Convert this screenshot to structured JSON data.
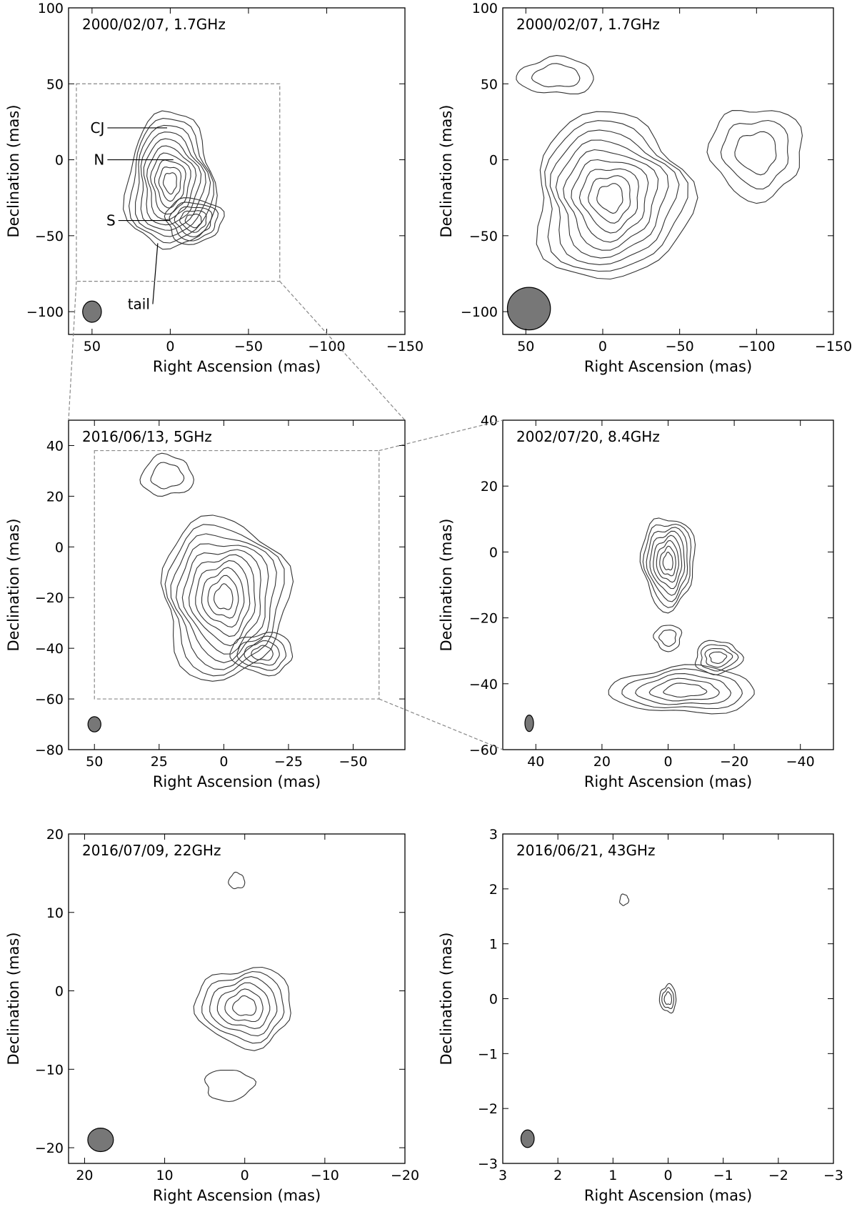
{
  "chart_data": [
    {
      "type": "contour",
      "title": "2000/02/07, 1.7GHz",
      "xlabel": "Right Ascension (mas)",
      "ylabel": "Declination (mas)",
      "xlim": [
        65,
        -150
      ],
      "ylim": [
        -115,
        100
      ],
      "xticks": [
        50,
        0,
        -50,
        -100,
        -150
      ],
      "xticklabels": [
        "50",
        "0",
        "−50",
        "−100",
        "−150"
      ],
      "yticks": [
        100,
        50,
        0,
        -50,
        -100
      ],
      "yticklabels": [
        "100",
        "50",
        "0",
        "−50",
        "−100"
      ],
      "beam": {
        "x": 50,
        "y": -100,
        "major": 7,
        "minor": 6,
        "pa": 0
      },
      "sources": [
        {
          "x": 0,
          "y": -15,
          "sx": 28,
          "sy": 45,
          "levels": 10
        },
        {
          "x": -15,
          "y": -40,
          "sx": 18,
          "sy": 15,
          "levels": 5
        }
      ],
      "annotations": [
        {
          "text": "CJ",
          "x": 42,
          "y": 21,
          "tx": 2,
          "ty": 21
        },
        {
          "text": "N",
          "x": 42,
          "y": 0,
          "tx": -2,
          "ty": 0
        },
        {
          "text": "S",
          "x": 35,
          "y": -40,
          "tx": 0,
          "ty": -40
        },
        {
          "text": "tail",
          "x": 13,
          "y": -95,
          "tx": 8,
          "ty": -55
        }
      ]
    },
    {
      "type": "contour",
      "title": "2000/02/07, 1.7GHz",
      "xlabel": "Right Ascension (mas)",
      "ylabel": "Declination (mas)",
      "xlim": [
        65,
        -150
      ],
      "ylim": [
        -115,
        100
      ],
      "xticks": [
        50,
        0,
        -50,
        -100,
        -150
      ],
      "xticklabels": [
        "50",
        "0",
        "−50",
        "−100",
        "−150"
      ],
      "yticks": [
        100,
        50,
        0,
        -50,
        -100
      ],
      "yticklabels": [
        "100",
        "50",
        "0",
        "−50",
        "−100"
      ],
      "beam": {
        "x": 48,
        "y": -98,
        "major": 14,
        "minor": 14,
        "pa": 0
      },
      "sources": [
        {
          "x": -5,
          "y": -25,
          "sx": 50,
          "sy": 55,
          "levels": 9
        },
        {
          "x": -100,
          "y": 5,
          "sx": 30,
          "sy": 30,
          "levels": 3
        },
        {
          "x": 30,
          "y": 55,
          "sx": 25,
          "sy": 12,
          "levels": 2
        }
      ]
    },
    {
      "type": "contour",
      "title": "2016/06/13, 5GHz",
      "xlabel": "Right Ascension (mas)",
      "ylabel": "Declination (mas)",
      "xlim": [
        60,
        -70
      ],
      "ylim": [
        -80,
        50
      ],
      "xticks": [
        50,
        25,
        0,
        -25,
        -50
      ],
      "xticklabels": [
        "50",
        "25",
        "0",
        "−25",
        "−50"
      ],
      "yticks": [
        40,
        20,
        0,
        -20,
        -40,
        -60,
        -80
      ],
      "yticklabels": [
        "40",
        "20",
        "0",
        "−20",
        "−40",
        "−60",
        "−80"
      ],
      "beam": {
        "x": 50,
        "y": -70,
        "major": 3,
        "minor": 2.5,
        "pa": 0
      },
      "sources": [
        {
          "x": 0,
          "y": -20,
          "sx": 24,
          "sy": 32,
          "levels": 10
        },
        {
          "x": -15,
          "y": -42,
          "sx": 12,
          "sy": 8,
          "levels": 4
        },
        {
          "x": 22,
          "y": 28,
          "sx": 10,
          "sy": 8,
          "levels": 2
        }
      ]
    },
    {
      "type": "contour",
      "title": "2002/07/20, 8.4GHz",
      "xlabel": "Right Ascension (mas)",
      "ylabel": "Declination (mas)",
      "xlim": [
        50,
        -50
      ],
      "ylim": [
        -60,
        40
      ],
      "xticks": [
        40,
        20,
        0,
        -20,
        -40
      ],
      "xticklabels": [
        "40",
        "20",
        "0",
        "−20",
        "−40"
      ],
      "yticks": [
        40,
        20,
        0,
        -20,
        -40,
        -60
      ],
      "yticklabels": [
        "40",
        "20",
        "0",
        "−20",
        "−40",
        "−60"
      ],
      "beam": {
        "x": 42,
        "y": -52,
        "major": 2.5,
        "minor": 1.3,
        "pa": 0
      },
      "sources": [
        {
          "x": 0,
          "y": -3,
          "sx": 8,
          "sy": 14,
          "levels": 8
        },
        {
          "x": -5,
          "y": -42,
          "sx": 22,
          "sy": 7,
          "levels": 5
        },
        {
          "x": -15,
          "y": -32,
          "sx": 7,
          "sy": 5,
          "levels": 4
        },
        {
          "x": 0,
          "y": -26,
          "sx": 4,
          "sy": 4,
          "levels": 2
        }
      ]
    },
    {
      "type": "contour",
      "title": "2016/07/09, 22GHz",
      "xlabel": "Right Ascension (mas)",
      "ylabel": "Declination (mas)",
      "xlim": [
        22,
        -20
      ],
      "ylim": [
        -22,
        20
      ],
      "xticks": [
        20,
        10,
        0,
        -10,
        -20
      ],
      "xticklabels": [
        "20",
        "10",
        "0",
        "−10",
        "−20"
      ],
      "yticks": [
        20,
        10,
        0,
        -10,
        -20
      ],
      "yticklabels": [
        "20",
        "10",
        "0",
        "−10",
        "−20"
      ],
      "beam": {
        "x": 18,
        "y": -19,
        "major": 1.5,
        "minor": 1.6,
        "pa": 0
      },
      "sources": [
        {
          "x": 0,
          "y": -2,
          "sx": 6,
          "sy": 5,
          "levels": 6
        },
        {
          "x": 1,
          "y": 14,
          "sx": 1,
          "sy": 1,
          "levels": 1
        },
        {
          "x": 2,
          "y": -12,
          "sx": 3,
          "sy": 2,
          "levels": 1
        }
      ]
    },
    {
      "type": "contour",
      "title": "2016/06/21, 43GHz",
      "xlabel": "Right Ascension (mas)",
      "ylabel": "Declination (mas)",
      "xlim": [
        3,
        -3
      ],
      "ylim": [
        -3,
        3
      ],
      "xticks": [
        3,
        2,
        1,
        0,
        -1,
        -2,
        -3
      ],
      "xticklabels": [
        "3",
        "2",
        "1",
        "0",
        "−1",
        "−2",
        "−3"
      ],
      "yticks": [
        3,
        2,
        1,
        0,
        -1,
        -2,
        -3
      ],
      "yticklabels": [
        "3",
        "2",
        "1",
        "0",
        "−1",
        "−2",
        "−3"
      ],
      "beam": {
        "x": 2.55,
        "y": -2.55,
        "major": 0.16,
        "minor": 0.12,
        "pa": 0
      },
      "sources": [
        {
          "x": 0,
          "y": 0,
          "sx": 0.15,
          "sy": 0.25,
          "levels": 3
        },
        {
          "x": 0.8,
          "y": 1.8,
          "sx": 0.08,
          "sy": 0.1,
          "levels": 1
        }
      ]
    }
  ]
}
